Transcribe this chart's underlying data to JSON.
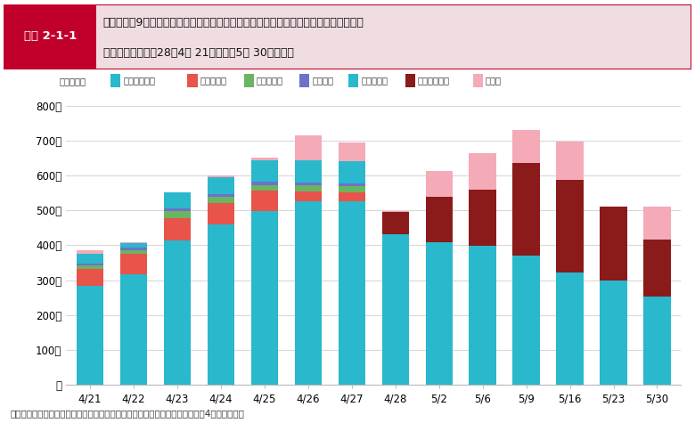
{
  "categories": [
    "4/21",
    "4/22",
    "4/23",
    "4/24",
    "4/25",
    "4/26",
    "4/27",
    "4/28",
    "5/2",
    "5/6",
    "5/9",
    "5/16",
    "5/23",
    "5/30"
  ],
  "legend_labels": [
    "被劳状況把握",
    "物資仕分け",
    "被災者ケア",
    "行政窓口",
    "避難所運營",
    "羅災証明業務",
    "その他"
  ],
  "colors": [
    "#29b8cc",
    "#e8534a",
    "#6ab560",
    "#7070cc",
    "#29b8cc",
    "#8b1a1a",
    "#f5aab8"
  ],
  "series": {
    "被劳状況把握": [
      283,
      317,
      415,
      460,
      498,
      527,
      527,
      393,
      383,
      376,
      342,
      295,
      271,
      208
    ],
    "物資仕分け": [
      50,
      58,
      63,
      60,
      58,
      28,
      25,
      0,
      0,
      0,
      0,
      0,
      0,
      0
    ],
    "被災者ケア": [
      10,
      10,
      20,
      18,
      17,
      17,
      17,
      0,
      0,
      0,
      0,
      0,
      0,
      0
    ],
    "行政窓口": [
      5,
      8,
      8,
      8,
      8,
      8,
      8,
      0,
      0,
      0,
      0,
      0,
      0,
      0
    ],
    "避難所運營": [
      27,
      13,
      45,
      50,
      63,
      63,
      63,
      40,
      25,
      23,
      28,
      28,
      28,
      45
    ],
    "羅災証明業務": [
      0,
      0,
      0,
      0,
      0,
      0,
      0,
      62,
      130,
      160,
      265,
      265,
      213,
      163
    ],
    "その他": [
      10,
      4,
      0,
      5,
      7,
      73,
      55,
      2,
      75,
      105,
      95,
      110,
      0,
      95
    ]
  },
  "ytick_labels": [
    "人",
    "100人",
    "200人",
    "300人",
    "400人",
    "500人",
    "600人",
    "700人",
    "800人"
  ],
  "yticks": [
    0,
    100,
    200,
    300,
    400,
    500,
    600,
    700,
    800
  ],
  "ylim": [
    0,
    830
  ],
  "title_box_label": "図表 2-1-1",
  "title_text_line1": "九州・山口9県、関西広域連合、全国知事会、静岡県等との協定に基づく熊本県への職",
  "title_text_line2": "員派遣状況（平成28年4月 21日～同年5月 30日まで）",
  "footer": "出典：熊本地震を踏まえた応急対策・生活支援策検討ワーキンググループ（第4回）資料より",
  "legend_prefix": "担当業務：",
  "title_box_color": "#c0002a",
  "title_bg_color": "#f0dde2",
  "grid_color": "#d8d8d8",
  "border_color": "#c0002a"
}
